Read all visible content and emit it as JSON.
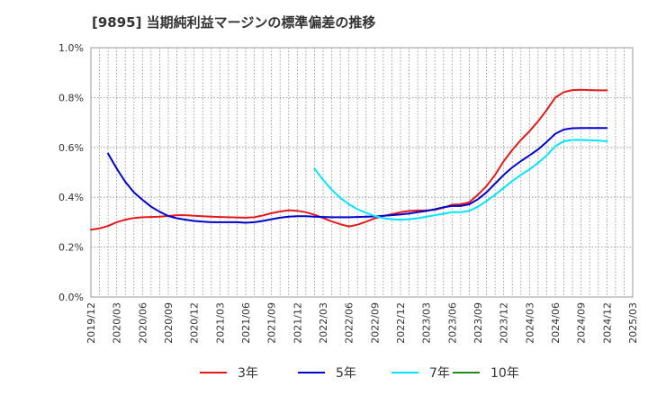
{
  "chart_data": {
    "type": "line",
    "title": "[9895]  当期純利益マージンの標準偏差の推移",
    "xlabel": "",
    "ylabel": "",
    "ylim": [
      0,
      1.0
    ],
    "yticks": [
      "0.0%",
      "0.2%",
      "0.4%",
      "0.6%",
      "0.8%",
      "1.0%"
    ],
    "y_tick_values": [
      0,
      0.2,
      0.4,
      0.6,
      0.8,
      1.0
    ],
    "xticks": [
      "2019/12",
      "2020/03",
      "2020/06",
      "2020/09",
      "2020/12",
      "2021/03",
      "2021/06",
      "2021/09",
      "2021/12",
      "2022/03",
      "2022/06",
      "2022/09",
      "2022/12",
      "2023/03",
      "2023/06",
      "2023/09",
      "2023/12",
      "2024/03",
      "2024/06",
      "2024/09",
      "2024/12",
      "2025/03"
    ],
    "grid": true,
    "legend_position": "bottom",
    "series": [
      {
        "name": "3年",
        "color": "#e31a1c",
        "points": [
          [
            "2019/12",
            0.27
          ],
          [
            "2020/01",
            0.275
          ],
          [
            "2020/02",
            0.285
          ],
          [
            "2020/03",
            0.3
          ],
          [
            "2020/04",
            0.31
          ],
          [
            "2020/05",
            0.317
          ],
          [
            "2020/06",
            0.32
          ],
          [
            "2020/07",
            0.321
          ],
          [
            "2020/08",
            0.322
          ],
          [
            "2020/09",
            0.325
          ],
          [
            "2020/10",
            0.328
          ],
          [
            "2020/11",
            0.328
          ],
          [
            "2020/12",
            0.326
          ],
          [
            "2021/01",
            0.324
          ],
          [
            "2021/02",
            0.322
          ],
          [
            "2021/03",
            0.321
          ],
          [
            "2021/04",
            0.32
          ],
          [
            "2021/05",
            0.319
          ],
          [
            "2021/06",
            0.318
          ],
          [
            "2021/07",
            0.32
          ],
          [
            "2021/08",
            0.327
          ],
          [
            "2021/09",
            0.336
          ],
          [
            "2021/10",
            0.343
          ],
          [
            "2021/11",
            0.348
          ],
          [
            "2021/12",
            0.346
          ],
          [
            "2022/01",
            0.34
          ],
          [
            "2022/02",
            0.33
          ],
          [
            "2022/03",
            0.317
          ],
          [
            "2022/04",
            0.303
          ],
          [
            "2022/05",
            0.292
          ],
          [
            "2022/06",
            0.283
          ],
          [
            "2022/07",
            0.29
          ],
          [
            "2022/08",
            0.302
          ],
          [
            "2022/09",
            0.315
          ],
          [
            "2022/10",
            0.325
          ],
          [
            "2022/11",
            0.332
          ],
          [
            "2022/12",
            0.34
          ],
          [
            "2023/01",
            0.345
          ],
          [
            "2023/02",
            0.347
          ],
          [
            "2023/03",
            0.347
          ],
          [
            "2023/04",
            0.35
          ],
          [
            "2023/05",
            0.358
          ],
          [
            "2023/06",
            0.37
          ],
          [
            "2023/07",
            0.372
          ],
          [
            "2023/08",
            0.38
          ],
          [
            "2023/09",
            0.41
          ],
          [
            "2023/10",
            0.445
          ],
          [
            "2023/11",
            0.49
          ],
          [
            "2023/12",
            0.545
          ],
          [
            "2024/01",
            0.59
          ],
          [
            "2024/02",
            0.63
          ],
          [
            "2024/03",
            0.665
          ],
          [
            "2024/04",
            0.705
          ],
          [
            "2024/05",
            0.75
          ],
          [
            "2024/06",
            0.8
          ],
          [
            "2024/07",
            0.822
          ],
          [
            "2024/08",
            0.83
          ],
          [
            "2024/09",
            0.831
          ],
          [
            "2024/10",
            0.83
          ],
          [
            "2024/11",
            0.829
          ],
          [
            "2024/12",
            0.829
          ]
        ]
      },
      {
        "name": "5年",
        "color": "#0000cd",
        "points": [
          [
            "2020/02",
            0.575
          ],
          [
            "2020/03",
            0.515
          ],
          [
            "2020/04",
            0.462
          ],
          [
            "2020/05",
            0.42
          ],
          [
            "2020/06",
            0.39
          ],
          [
            "2020/07",
            0.362
          ],
          [
            "2020/08",
            0.342
          ],
          [
            "2020/09",
            0.325
          ],
          [
            "2020/10",
            0.316
          ],
          [
            "2020/11",
            0.31
          ],
          [
            "2020/12",
            0.305
          ],
          [
            "2021/01",
            0.302
          ],
          [
            "2021/02",
            0.3
          ],
          [
            "2021/03",
            0.3
          ],
          [
            "2021/04",
            0.3
          ],
          [
            "2021/05",
            0.3
          ],
          [
            "2021/06",
            0.298
          ],
          [
            "2021/07",
            0.3
          ],
          [
            "2021/08",
            0.305
          ],
          [
            "2021/09",
            0.312
          ],
          [
            "2021/10",
            0.318
          ],
          [
            "2021/11",
            0.322
          ],
          [
            "2021/12",
            0.324
          ],
          [
            "2022/01",
            0.324
          ],
          [
            "2022/02",
            0.322
          ],
          [
            "2022/03",
            0.321
          ],
          [
            "2022/04",
            0.32
          ],
          [
            "2022/05",
            0.32
          ],
          [
            "2022/06",
            0.32
          ],
          [
            "2022/07",
            0.321
          ],
          [
            "2022/08",
            0.322
          ],
          [
            "2022/09",
            0.323
          ],
          [
            "2022/10",
            0.326
          ],
          [
            "2022/11",
            0.328
          ],
          [
            "2022/12",
            0.331
          ],
          [
            "2023/01",
            0.335
          ],
          [
            "2023/02",
            0.34
          ],
          [
            "2023/03",
            0.345
          ],
          [
            "2023/04",
            0.352
          ],
          [
            "2023/05",
            0.36
          ],
          [
            "2023/06",
            0.365
          ],
          [
            "2023/07",
            0.365
          ],
          [
            "2023/08",
            0.372
          ],
          [
            "2023/09",
            0.392
          ],
          [
            "2023/10",
            0.42
          ],
          [
            "2023/11",
            0.455
          ],
          [
            "2023/12",
            0.49
          ],
          [
            "2024/01",
            0.52
          ],
          [
            "2024/02",
            0.545
          ],
          [
            "2024/03",
            0.568
          ],
          [
            "2024/04",
            0.592
          ],
          [
            "2024/05",
            0.622
          ],
          [
            "2024/06",
            0.655
          ],
          [
            "2024/07",
            0.672
          ],
          [
            "2024/08",
            0.677
          ],
          [
            "2024/09",
            0.678
          ],
          [
            "2024/10",
            0.678
          ],
          [
            "2024/11",
            0.678
          ],
          [
            "2024/12",
            0.678
          ]
        ]
      },
      {
        "name": "7年",
        "color": "#00e5ff",
        "points": [
          [
            "2022/02",
            0.515
          ],
          [
            "2022/03",
            0.47
          ],
          [
            "2022/04",
            0.43
          ],
          [
            "2022/05",
            0.398
          ],
          [
            "2022/06",
            0.372
          ],
          [
            "2022/07",
            0.352
          ],
          [
            "2022/08",
            0.338
          ],
          [
            "2022/09",
            0.325
          ],
          [
            "2022/10",
            0.316
          ],
          [
            "2022/11",
            0.312
          ],
          [
            "2022/12",
            0.31
          ],
          [
            "2023/01",
            0.312
          ],
          [
            "2023/02",
            0.316
          ],
          [
            "2023/03",
            0.322
          ],
          [
            "2023/04",
            0.328
          ],
          [
            "2023/05",
            0.334
          ],
          [
            "2023/06",
            0.34
          ],
          [
            "2023/07",
            0.34
          ],
          [
            "2023/08",
            0.345
          ],
          [
            "2023/09",
            0.362
          ],
          [
            "2023/10",
            0.385
          ],
          [
            "2023/11",
            0.41
          ],
          [
            "2023/12",
            0.438
          ],
          [
            "2024/01",
            0.465
          ],
          [
            "2024/02",
            0.49
          ],
          [
            "2024/03",
            0.512
          ],
          [
            "2024/04",
            0.538
          ],
          [
            "2024/05",
            0.568
          ],
          [
            "2024/06",
            0.605
          ],
          [
            "2024/07",
            0.625
          ],
          [
            "2024/08",
            0.63
          ],
          [
            "2024/09",
            0.63
          ],
          [
            "2024/10",
            0.629
          ],
          [
            "2024/11",
            0.627
          ],
          [
            "2024/12",
            0.625
          ]
        ]
      },
      {
        "name": "10年",
        "color": "#228b22",
        "points": []
      }
    ]
  }
}
